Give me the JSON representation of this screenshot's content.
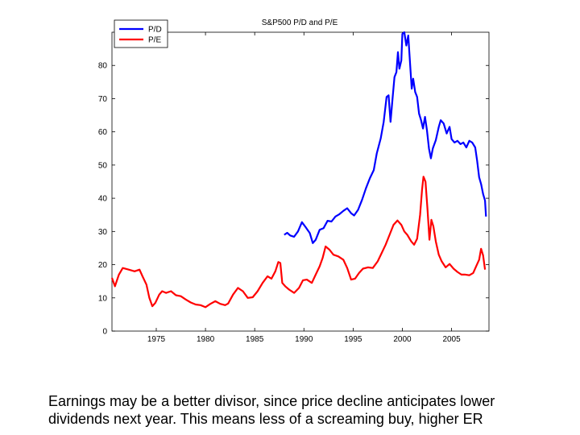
{
  "chart_data": {
    "type": "line",
    "title": "S&P500 P/D and P/E",
    "xlabel": "",
    "ylabel": "",
    "xlim": [
      1970.5,
      2008.8
    ],
    "ylim": [
      0,
      90
    ],
    "x_ticks": [
      "1975",
      "1980",
      "1985",
      "1990",
      "1995",
      "2000",
      "2005"
    ],
    "y_ticks": [
      "0",
      "10",
      "20",
      "30",
      "40",
      "50",
      "60",
      "70",
      "80"
    ],
    "grid": false,
    "legend": "top-left",
    "series": [
      {
        "name": "P/D",
        "color": "#0000ff",
        "points": [
          [
            1988.0,
            29
          ],
          [
            1988.3,
            29.6
          ],
          [
            1988.6,
            28.8
          ],
          [
            1989.0,
            28.4
          ],
          [
            1989.4,
            30
          ],
          [
            1989.8,
            32.8
          ],
          [
            1990.2,
            31.2
          ],
          [
            1990.6,
            29.5
          ],
          [
            1990.9,
            26.5
          ],
          [
            1991.2,
            27.5
          ],
          [
            1991.6,
            30.5
          ],
          [
            1992.0,
            31
          ],
          [
            1992.4,
            33.2
          ],
          [
            1992.8,
            33
          ],
          [
            1993.2,
            34.5
          ],
          [
            1993.6,
            35.2
          ],
          [
            1994.0,
            36.2
          ],
          [
            1994.4,
            37
          ],
          [
            1994.8,
            35.5
          ],
          [
            1995.1,
            34.8
          ],
          [
            1995.5,
            36.5
          ],
          [
            1995.9,
            39.5
          ],
          [
            1996.3,
            43
          ],
          [
            1996.7,
            46
          ],
          [
            1997.1,
            48.5
          ],
          [
            1997.4,
            53.5
          ],
          [
            1997.8,
            58
          ],
          [
            1998.1,
            63
          ],
          [
            1998.4,
            70.5
          ],
          [
            1998.6,
            71
          ],
          [
            1998.8,
            63
          ],
          [
            1999.0,
            70
          ],
          [
            1999.2,
            76.5
          ],
          [
            1999.4,
            78
          ],
          [
            1999.55,
            84
          ],
          [
            1999.7,
            79
          ],
          [
            1999.9,
            81.5
          ],
          [
            2000.0,
            89.5
          ],
          [
            2000.2,
            90
          ],
          [
            2000.4,
            86
          ],
          [
            2000.6,
            89
          ],
          [
            2000.8,
            80
          ],
          [
            2000.95,
            73
          ],
          [
            2001.1,
            76
          ],
          [
            2001.3,
            72
          ],
          [
            2001.5,
            70.5
          ],
          [
            2001.7,
            65.5
          ],
          [
            2001.9,
            63.5
          ],
          [
            2002.1,
            61
          ],
          [
            2002.3,
            64.5
          ],
          [
            2002.5,
            60.5
          ],
          [
            2002.7,
            55
          ],
          [
            2002.9,
            52
          ],
          [
            2003.1,
            55
          ],
          [
            2003.4,
            57.5
          ],
          [
            2003.7,
            61.5
          ],
          [
            2003.9,
            63.5
          ],
          [
            2004.2,
            62.5
          ],
          [
            2004.5,
            59.5
          ],
          [
            2004.8,
            61.5
          ],
          [
            2005.0,
            57.8
          ],
          [
            2005.3,
            56.8
          ],
          [
            2005.6,
            57.3
          ],
          [
            2005.9,
            56.3
          ],
          [
            2006.2,
            56.8
          ],
          [
            2006.5,
            55.3
          ],
          [
            2006.8,
            57.3
          ],
          [
            2007.1,
            56.8
          ],
          [
            2007.4,
            55.3
          ],
          [
            2007.6,
            51.3
          ],
          [
            2007.8,
            46.3
          ],
          [
            2008.0,
            44.3
          ],
          [
            2008.2,
            41.3
          ],
          [
            2008.4,
            39.3
          ],
          [
            2008.5,
            34.5
          ]
        ]
      },
      {
        "name": "P/E",
        "color": "#ff0000",
        "points": [
          [
            1970.5,
            16
          ],
          [
            1970.8,
            13.5
          ],
          [
            1971.2,
            17
          ],
          [
            1971.6,
            19
          ],
          [
            1972.2,
            18.5
          ],
          [
            1972.8,
            18
          ],
          [
            1973.3,
            18.5
          ],
          [
            1973.6,
            16.5
          ],
          [
            1974.0,
            14
          ],
          [
            1974.3,
            10
          ],
          [
            1974.6,
            7.5
          ],
          [
            1974.9,
            8.5
          ],
          [
            1975.3,
            11
          ],
          [
            1975.6,
            12
          ],
          [
            1976.0,
            11.5
          ],
          [
            1976.5,
            12
          ],
          [
            1977.0,
            10.8
          ],
          [
            1977.5,
            10.5
          ],
          [
            1978.0,
            9.5
          ],
          [
            1978.5,
            8.6
          ],
          [
            1979.0,
            8
          ],
          [
            1979.5,
            7.8
          ],
          [
            1980.0,
            7.2
          ],
          [
            1980.5,
            8.2
          ],
          [
            1981.0,
            9
          ],
          [
            1981.5,
            8.2
          ],
          [
            1982.0,
            7.8
          ],
          [
            1982.3,
            8.3
          ],
          [
            1982.8,
            11
          ],
          [
            1983.3,
            13
          ],
          [
            1983.8,
            12
          ],
          [
            1984.3,
            10
          ],
          [
            1984.8,
            10.2
          ],
          [
            1985.3,
            12
          ],
          [
            1985.8,
            14.5
          ],
          [
            1986.3,
            16.5
          ],
          [
            1986.7,
            15.8
          ],
          [
            1987.1,
            18
          ],
          [
            1987.4,
            20.8
          ],
          [
            1987.6,
            20.5
          ],
          [
            1987.8,
            14.5
          ],
          [
            1988.1,
            13.5
          ],
          [
            1988.5,
            12.5
          ],
          [
            1989.0,
            11.5
          ],
          [
            1989.5,
            13
          ],
          [
            1989.9,
            15.3
          ],
          [
            1990.3,
            15.5
          ],
          [
            1990.8,
            14.5
          ],
          [
            1991.2,
            17
          ],
          [
            1991.6,
            19.5
          ],
          [
            1991.9,
            22
          ],
          [
            1992.2,
            25.5
          ],
          [
            1992.6,
            24.5
          ],
          [
            1993.0,
            23
          ],
          [
            1993.5,
            22.5
          ],
          [
            1994.0,
            21.5
          ],
          [
            1994.4,
            19
          ],
          [
            1994.8,
            15.5
          ],
          [
            1995.2,
            15.8
          ],
          [
            1995.6,
            17.5
          ],
          [
            1996.0,
            18.8
          ],
          [
            1996.5,
            19.2
          ],
          [
            1997.0,
            19
          ],
          [
            1997.5,
            21
          ],
          [
            1997.9,
            23.5
          ],
          [
            1998.3,
            26
          ],
          [
            1998.7,
            29
          ],
          [
            1999.1,
            32
          ],
          [
            1999.5,
            33.3
          ],
          [
            1999.9,
            32
          ],
          [
            2000.2,
            30
          ],
          [
            2000.5,
            29
          ],
          [
            2000.9,
            27
          ],
          [
            2001.2,
            26
          ],
          [
            2001.5,
            27.8
          ],
          [
            2001.8,
            35
          ],
          [
            2002.0,
            42.5
          ],
          [
            2002.15,
            46.5
          ],
          [
            2002.35,
            45
          ],
          [
            2002.55,
            37
          ],
          [
            2002.75,
            27.5
          ],
          [
            2002.95,
            33.5
          ],
          [
            2003.15,
            31.5
          ],
          [
            2003.4,
            27
          ],
          [
            2003.7,
            23
          ],
          [
            2004.0,
            21
          ],
          [
            2004.4,
            19.2
          ],
          [
            2004.8,
            20.2
          ],
          [
            2005.2,
            18.8
          ],
          [
            2005.6,
            17.8
          ],
          [
            2006.0,
            17
          ],
          [
            2006.4,
            17
          ],
          [
            2006.8,
            16.8
          ],
          [
            2007.2,
            17.5
          ],
          [
            2007.5,
            19.5
          ],
          [
            2007.8,
            21.5
          ],
          [
            2008.0,
            24.8
          ],
          [
            2008.2,
            22.8
          ],
          [
            2008.4,
            18.5
          ]
        ]
      }
    ]
  },
  "caption": {
    "line1": "Earnings may be a better divisor, since price decline anticipates lower",
    "line2": "dividends next year. This means less of a screaming buy, higher ER"
  }
}
